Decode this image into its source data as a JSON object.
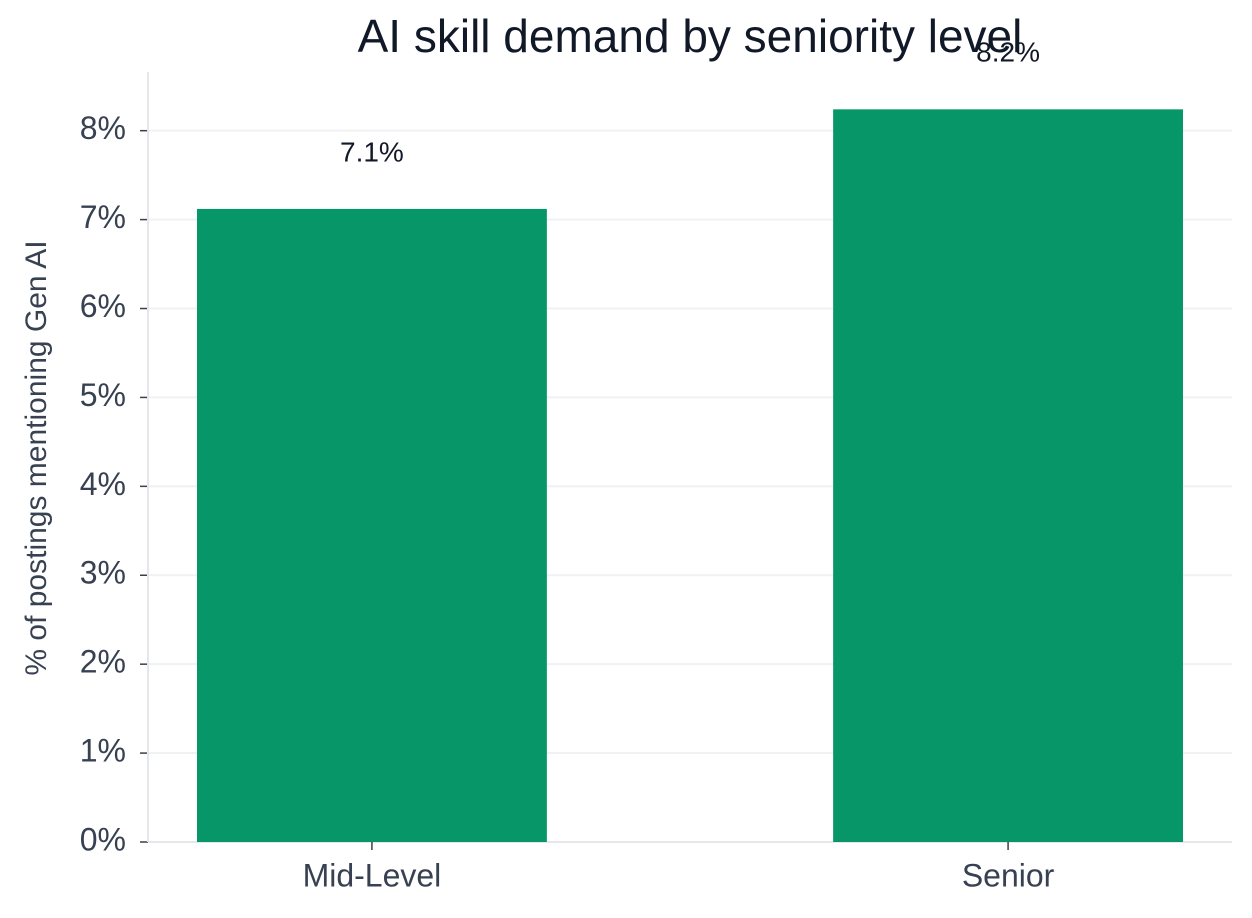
{
  "chart_data": {
    "type": "bar",
    "title": "AI skill demand by seniority level",
    "y_label": "% of postings mentioning Gen AI",
    "categories": [
      "Mid-Level",
      "Senior"
    ],
    "values": [
      7.12,
      8.24
    ],
    "value_labels": [
      "7.1%",
      "8.2%"
    ],
    "color": "#069668",
    "ylim": [
      0,
      8.66
    ],
    "yticks": [
      {
        "value": 0,
        "label": "0%"
      },
      {
        "value": 1,
        "label": "1%"
      },
      {
        "value": 2,
        "label": "2%"
      },
      {
        "value": 3,
        "label": "3%"
      },
      {
        "value": 4,
        "label": "4%"
      },
      {
        "value": 5,
        "label": "5%"
      },
      {
        "value": 6,
        "label": "6%"
      },
      {
        "value": 7,
        "label": "7%"
      },
      {
        "value": 8,
        "label": "8%"
      }
    ],
    "grid": true
  }
}
